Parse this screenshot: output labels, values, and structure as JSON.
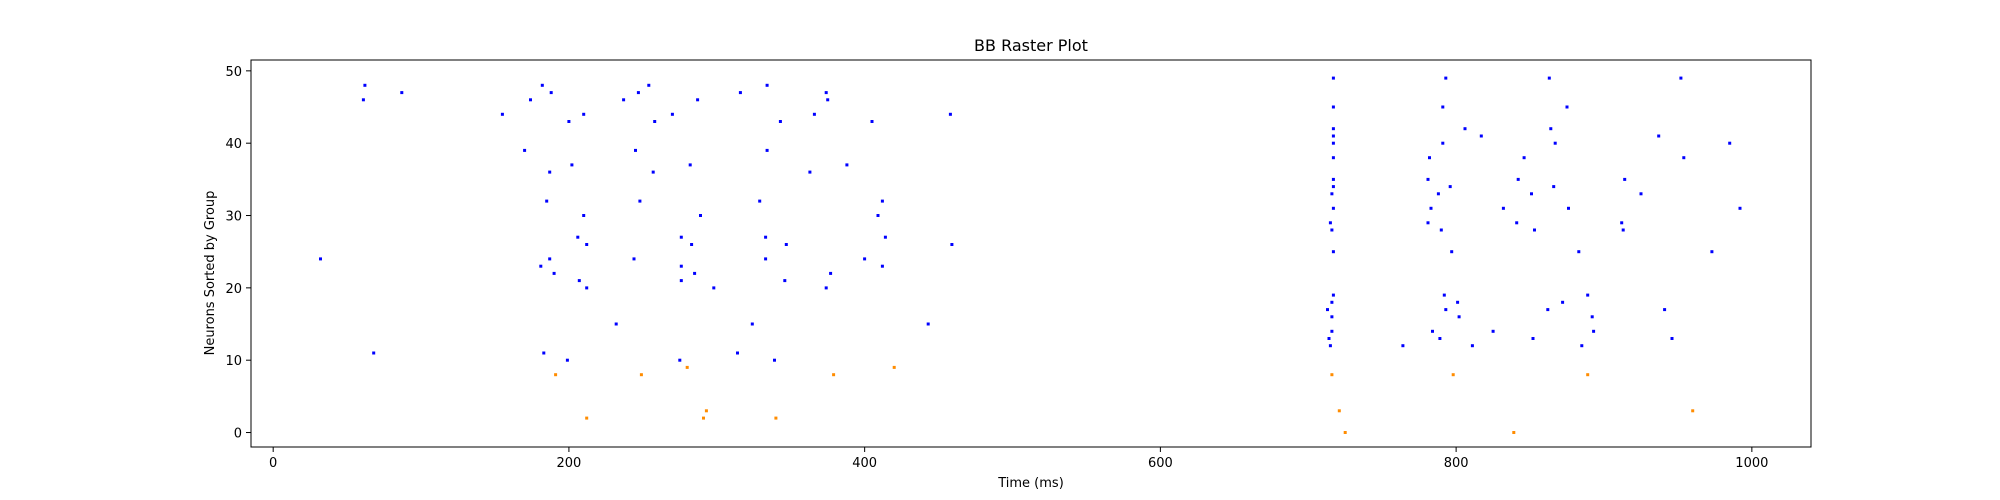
{
  "chart_data": {
    "type": "scatter",
    "title": "BB Raster Plot",
    "xlabel": "Time (ms)",
    "ylabel": "Neurons Sorted by Group",
    "xlim": [
      -15,
      1040
    ],
    "ylim": [
      -2,
      51.5
    ],
    "xticks": [
      0,
      200,
      400,
      600,
      800,
      1000
    ],
    "yticks": [
      0,
      10,
      20,
      30,
      40,
      50
    ],
    "grid": false,
    "legend": "none",
    "series": [
      {
        "color": "#0000ff",
        "points": [
          [
            32,
            24
          ],
          [
            61,
            46
          ],
          [
            62,
            48
          ],
          [
            68,
            11
          ],
          [
            87,
            47
          ],
          [
            155,
            44
          ],
          [
            170,
            39
          ],
          [
            174,
            46
          ],
          [
            181,
            23
          ],
          [
            182,
            48
          ],
          [
            183,
            11
          ],
          [
            185,
            32
          ],
          [
            187,
            36
          ],
          [
            187,
            24
          ],
          [
            188,
            47
          ],
          [
            190,
            22
          ],
          [
            199,
            10
          ],
          [
            200,
            43
          ],
          [
            202,
            37
          ],
          [
            206,
            27
          ],
          [
            207,
            21
          ],
          [
            210,
            44
          ],
          [
            210,
            30
          ],
          [
            212,
            20
          ],
          [
            212,
            26
          ],
          [
            232,
            15
          ],
          [
            237,
            46
          ],
          [
            244,
            24
          ],
          [
            245,
            39
          ],
          [
            247,
            47
          ],
          [
            248,
            32
          ],
          [
            254,
            48
          ],
          [
            257,
            36
          ],
          [
            258,
            43
          ],
          [
            270,
            44
          ],
          [
            275,
            10
          ],
          [
            276,
            21
          ],
          [
            276,
            23
          ],
          [
            276,
            27
          ],
          [
            282,
            37
          ],
          [
            283,
            26
          ],
          [
            285,
            22
          ],
          [
            287,
            46
          ],
          [
            289,
            30
          ],
          [
            298,
            20
          ],
          [
            314,
            11
          ],
          [
            316,
            47
          ],
          [
            324,
            15
          ],
          [
            329,
            32
          ],
          [
            333,
            24
          ],
          [
            333,
            27
          ],
          [
            334,
            39
          ],
          [
            334,
            48
          ],
          [
            339,
            10
          ],
          [
            343,
            43
          ],
          [
            346,
            21
          ],
          [
            347,
            26
          ],
          [
            363,
            36
          ],
          [
            366,
            44
          ],
          [
            374,
            20
          ],
          [
            374,
            47
          ],
          [
            375,
            46
          ],
          [
            377,
            22
          ],
          [
            388,
            37
          ],
          [
            400,
            24
          ],
          [
            405,
            43
          ],
          [
            409,
            30
          ],
          [
            412,
            23
          ],
          [
            412,
            32
          ],
          [
            414,
            27
          ],
          [
            443,
            15
          ],
          [
            458,
            44
          ],
          [
            459,
            26
          ],
          [
            713,
            17
          ],
          [
            714,
            13
          ],
          [
            715,
            12
          ],
          [
            715,
            29
          ],
          [
            716,
            33
          ],
          [
            716,
            28
          ],
          [
            716,
            18
          ],
          [
            716,
            16
          ],
          [
            716,
            14
          ],
          [
            717,
            19
          ],
          [
            717,
            25
          ],
          [
            717,
            31
          ],
          [
            717,
            34
          ],
          [
            717,
            35
          ],
          [
            717,
            38
          ],
          [
            717,
            40
          ],
          [
            717,
            41
          ],
          [
            717,
            42
          ],
          [
            717,
            45
          ],
          [
            717,
            49
          ],
          [
            764,
            12
          ],
          [
            781,
            29
          ],
          [
            781,
            35
          ],
          [
            782,
            38
          ],
          [
            783,
            31
          ],
          [
            784,
            14
          ],
          [
            788,
            33
          ],
          [
            789,
            13
          ],
          [
            790,
            28
          ],
          [
            791,
            45
          ],
          [
            791,
            40
          ],
          [
            792,
            19
          ],
          [
            793,
            49
          ],
          [
            793,
            17
          ],
          [
            796,
            34
          ],
          [
            797,
            25
          ],
          [
            801,
            18
          ],
          [
            802,
            16
          ],
          [
            806,
            42
          ],
          [
            811,
            12
          ],
          [
            817,
            41
          ],
          [
            825,
            14
          ],
          [
            832,
            31
          ],
          [
            841,
            29
          ],
          [
            842,
            35
          ],
          [
            846,
            38
          ],
          [
            851,
            33
          ],
          [
            852,
            13
          ],
          [
            853,
            28
          ],
          [
            862,
            17
          ],
          [
            863,
            49
          ],
          [
            864,
            42
          ],
          [
            866,
            34
          ],
          [
            867,
            40
          ],
          [
            872,
            18
          ],
          [
            875,
            45
          ],
          [
            876,
            31
          ],
          [
            883,
            25
          ],
          [
            885,
            12
          ],
          [
            889,
            19
          ],
          [
            892,
            16
          ],
          [
            893,
            14
          ],
          [
            912,
            29
          ],
          [
            913,
            28
          ],
          [
            914,
            35
          ],
          [
            925,
            33
          ],
          [
            937,
            41
          ],
          [
            941,
            17
          ],
          [
            946,
            13
          ],
          [
            952,
            49
          ],
          [
            954,
            38
          ],
          [
            973,
            25
          ],
          [
            985,
            40
          ],
          [
            992,
            31
          ]
        ]
      },
      {
        "color": "#ff8c00",
        "points": [
          [
            191,
            8
          ],
          [
            212,
            2
          ],
          [
            249,
            8
          ],
          [
            280,
            9
          ],
          [
            291,
            2
          ],
          [
            293,
            3
          ],
          [
            340,
            2
          ],
          [
            379,
            8
          ],
          [
            420,
            9
          ],
          [
            716,
            8
          ],
          [
            721,
            3
          ],
          [
            725,
            0
          ],
          [
            798,
            8
          ],
          [
            839,
            0
          ],
          [
            889,
            8
          ],
          [
            960,
            3
          ]
        ]
      }
    ]
  }
}
